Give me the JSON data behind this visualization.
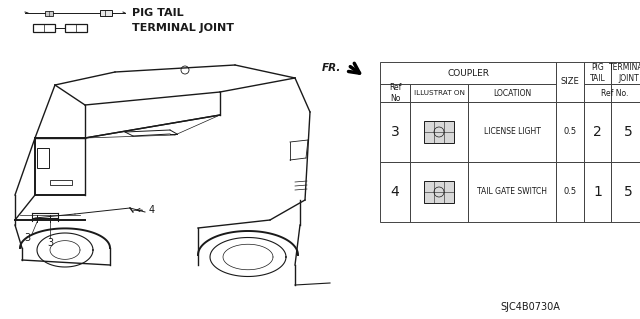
{
  "bg_color": "#ffffff",
  "text_color": "#1a1a1a",
  "line_color": "#1a1a1a",
  "diagram_id": "SJC4B0730A",
  "table": {
    "rows": [
      {
        "ref": "3",
        "location": "LICENSE LIGHT",
        "size": "0.5",
        "pig": "2",
        "joint": "5"
      },
      {
        "ref": "4",
        "location": "TAIL GATE SWITCH",
        "size": "0.5",
        "pig": "1",
        "joint": "5"
      }
    ]
  }
}
